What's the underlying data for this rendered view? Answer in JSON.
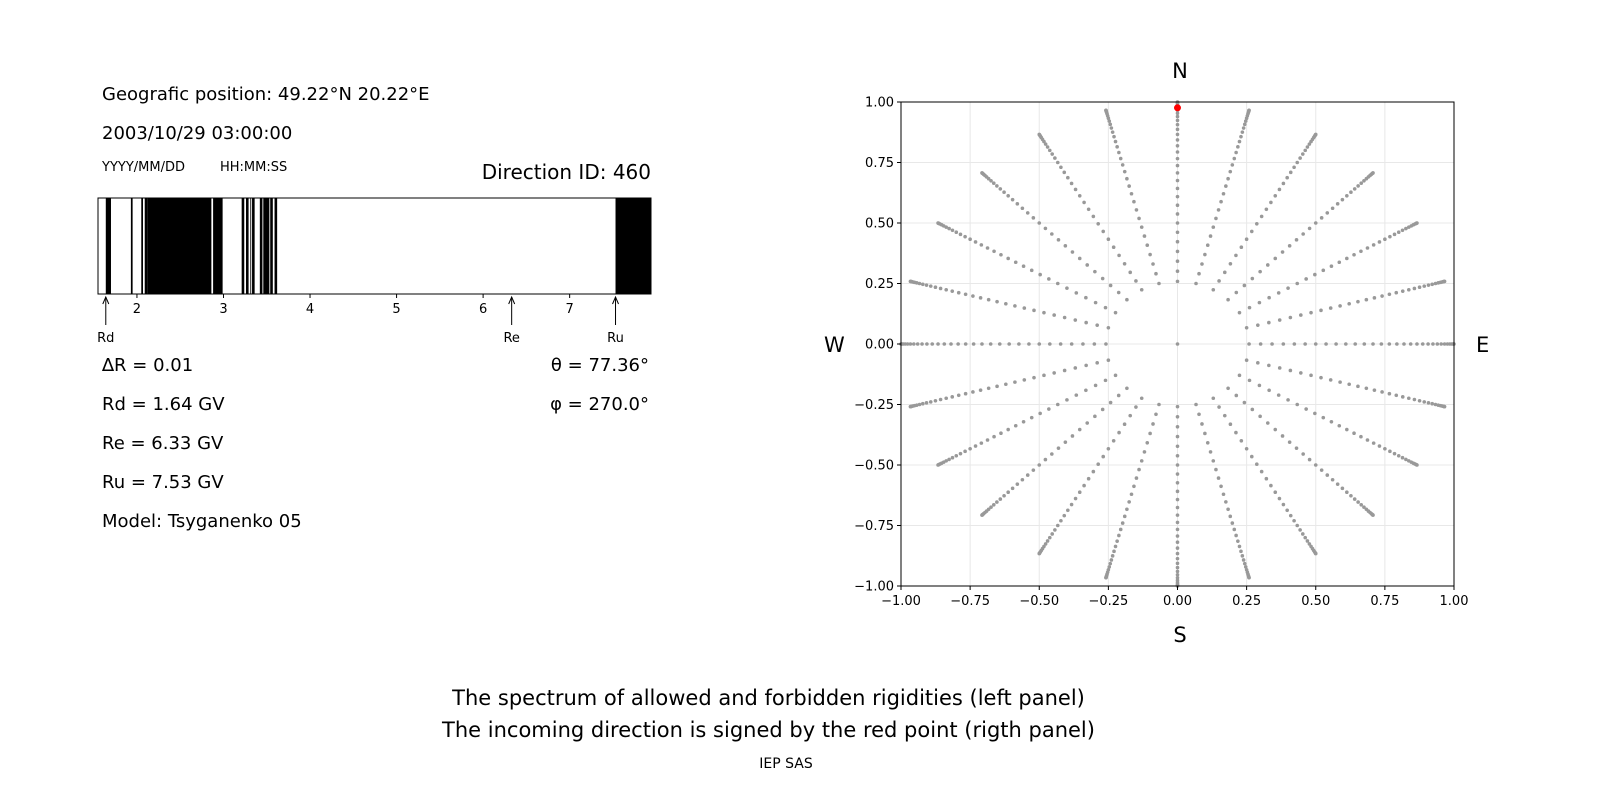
{
  "left_panel": {
    "position_line": "Geografic position: 49.22°N 20.22°E",
    "datetime": "2003/10/29 03:00:00",
    "date_format_label": "YYYY/MM/DD",
    "time_format_label": "HH:MM:SS",
    "direction_id": "Direction ID: 460",
    "params": [
      "∆R = 0.01",
      "Rd = 1.64 GV",
      "Re = 6.33 GV",
      "Ru = 7.53 GV",
      "Model: Tsyganenko 05"
    ],
    "angles": [
      "θ = 77.36°",
      "φ = 270.0°"
    ]
  },
  "right_panel": {
    "north_label": "N",
    "south_label": "S",
    "west_label": "W",
    "east_label": "E"
  },
  "caption": {
    "line1": "The spectrum of allowed and forbidden rigidities (left panel)",
    "line2": "The incoming direction is signed by the red point (rigth panel)",
    "credit": "IEP SAS"
  },
  "chart_data": [
    {
      "type": "bar",
      "name": "rigidity-spectrum",
      "xlim": [
        1.55,
        7.94
      ],
      "ticks": [
        2,
        3,
        4,
        5,
        6,
        7
      ],
      "forbidden_color": "#000000",
      "allowed_color": "#ffffff",
      "forbidden_intervals": [
        [
          1.64,
          1.7
        ],
        [
          1.93,
          1.95
        ],
        [
          2.05,
          2.07
        ],
        [
          2.09,
          2.12
        ],
        [
          2.12,
          2.86
        ],
        [
          2.88,
          2.99
        ],
        [
          3.21,
          3.24
        ],
        [
          3.26,
          3.29
        ],
        [
          3.31,
          3.32
        ],
        [
          3.33,
          3.36
        ],
        [
          3.42,
          3.45
        ],
        [
          3.46,
          3.53
        ],
        [
          3.54,
          3.57
        ],
        [
          3.59,
          3.62
        ],
        [
          7.53,
          7.94
        ]
      ],
      "markers": [
        {
          "label": "Rd",
          "value": 1.64
        },
        {
          "label": "Re",
          "value": 6.33
        },
        {
          "label": "Ru",
          "value": 7.53
        }
      ]
    },
    {
      "type": "scatter",
      "name": "asymptotic-directions",
      "xlim": [
        -1,
        1
      ],
      "ylim": [
        -1,
        1
      ],
      "xticks": [
        -1.0,
        -0.75,
        -0.5,
        -0.25,
        0.0,
        0.25,
        0.5,
        0.75,
        1.0
      ],
      "yticks": [
        -1.0,
        -0.75,
        -0.5,
        -0.25,
        0.0,
        0.25,
        0.5,
        0.75,
        1.0
      ],
      "xtick_labels": [
        "−1.00",
        "−0.75",
        "−0.50",
        "−0.25",
        "0.00",
        "0.25",
        "0.50",
        "0.75",
        "1.00"
      ],
      "ytick_labels": [
        "−1.00",
        "−0.75",
        "−0.50",
        "−0.25",
        "0.00",
        "0.25",
        "0.50",
        "0.75",
        "1.00"
      ],
      "grid": true,
      "grid_points": {
        "azimuth_step_deg": 15,
        "zenith_from_deg": 15,
        "zenith_to_deg": 90,
        "zenith_step_deg": 2.5,
        "projection": "r = sin(zenith)",
        "color": "#999999",
        "center_point": [
          0,
          0
        ]
      },
      "highlight": {
        "x": 0.0,
        "y": 0.976,
        "color": "#ff0000",
        "zenith_deg": 77.36,
        "azimuth_deg": 270.0
      }
    }
  ]
}
